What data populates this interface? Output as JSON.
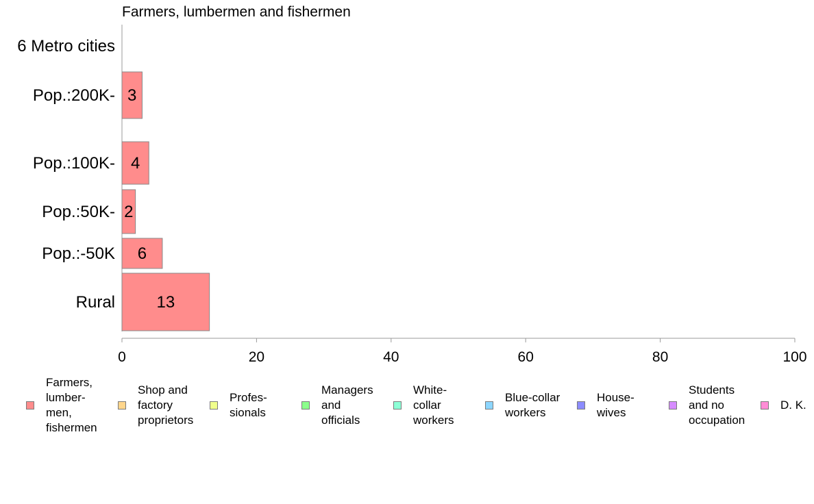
{
  "chart_data": {
    "type": "bar",
    "orientation": "horizontal",
    "title": "Farmers, lumbermen and fishermen",
    "categories": [
      "6 Metro cities",
      "Pop.:200K-",
      "Pop.:100K-",
      "Pop.:50K-",
      "Pop.:-50K",
      "Rural"
    ],
    "series": [
      {
        "name": "Farmers,\nlumber-\nmen,\nfishermen",
        "values": [
          0,
          3,
          4,
          2,
          6,
          13
        ],
        "color": "#ff8c8c"
      }
    ],
    "data_labels": [
      "",
      "3",
      "4",
      "2",
      "6",
      "13"
    ],
    "xlim": [
      0,
      100
    ],
    "xticks": [
      "0",
      "20",
      "40",
      "60",
      "80",
      "100"
    ],
    "xlabel": "",
    "ylabel": "",
    "grid": false,
    "legend_position": "bottom",
    "legend": [
      {
        "label": "Farmers,\nlumber-\nmen,\nfishermen",
        "color": "#ff8c8c"
      },
      {
        "label": "Shop and\nfactory\nproprietors",
        "color": "#ffd68c"
      },
      {
        "label": "Profes-\nsionals",
        "color": "#f0ff8c"
      },
      {
        "label": "Managers\nand\nofficials",
        "color": "#8cff8c"
      },
      {
        "label": "White-\ncollar\nworkers",
        "color": "#8cffd6"
      },
      {
        "label": "Blue-collar\nworkers",
        "color": "#8cd6ff"
      },
      {
        "label": "House-\nwives",
        "color": "#8c8cff"
      },
      {
        "label": "Students\nand no\noccupation",
        "color": "#d68cff"
      },
      {
        "label": "D. K.",
        "color": "#ff8cd6"
      }
    ]
  }
}
